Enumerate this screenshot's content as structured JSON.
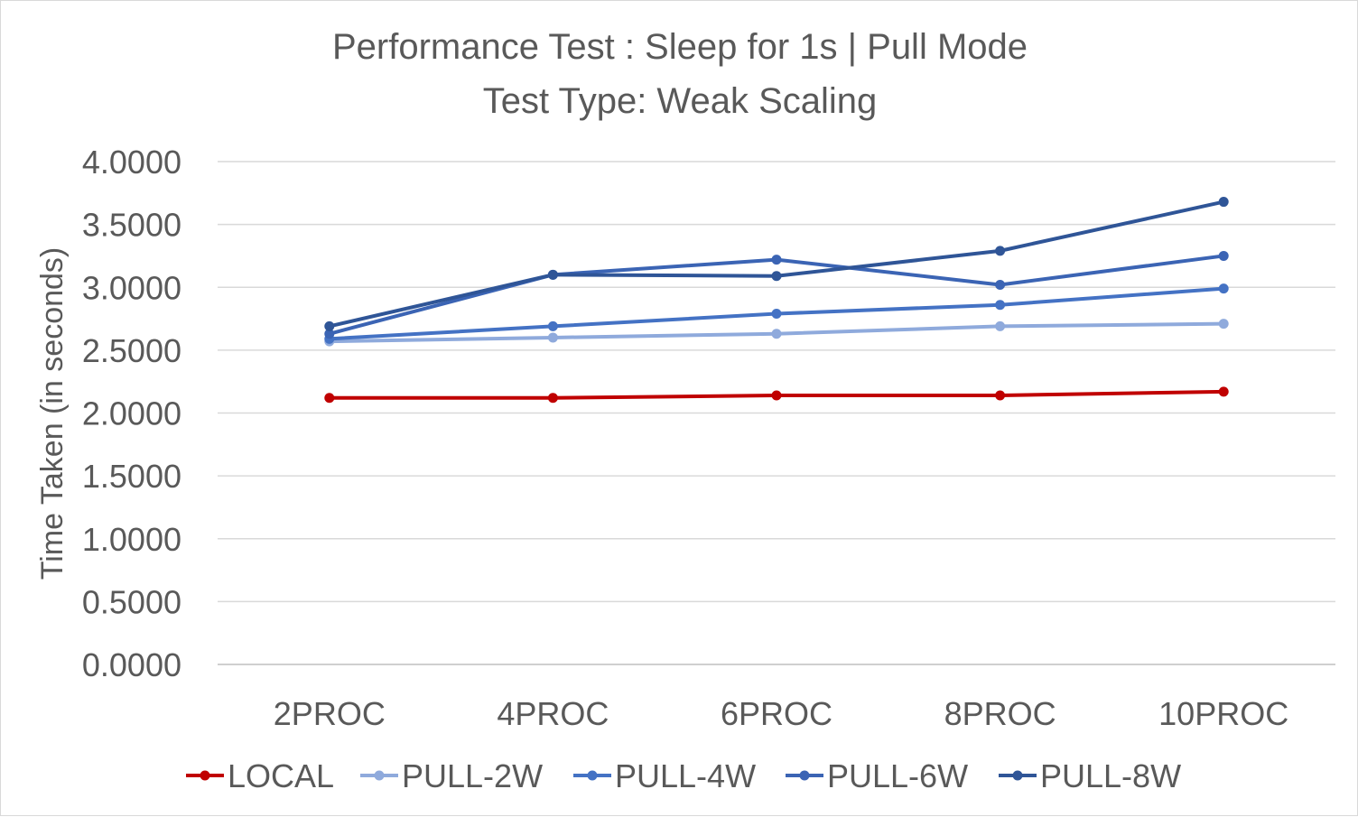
{
  "chart_data": {
    "type": "line",
    "title": "Performance Test : Sleep for 1s | Pull Mode",
    "subtitle": "Test Type: Weak Scaling",
    "xlabel": "",
    "ylabel": "Time Taken (in seconds)",
    "categories": [
      "2PROC",
      "4PROC",
      "6PROC",
      "8PROC",
      "10PROC"
    ],
    "ylim": [
      0,
      4
    ],
    "yticks": [
      "0.0000",
      "0.5000",
      "1.0000",
      "1.5000",
      "2.0000",
      "2.5000",
      "3.0000",
      "3.5000",
      "4.0000"
    ],
    "grid": true,
    "legend_position": "bottom",
    "series": [
      {
        "name": "LOCAL",
        "color": "#c00000",
        "values": [
          2.12,
          2.12,
          2.14,
          2.14,
          2.17
        ]
      },
      {
        "name": "PULL-2W",
        "color": "#8faadc",
        "values": [
          2.57,
          2.6,
          2.63,
          2.69,
          2.71
        ]
      },
      {
        "name": "PULL-4W",
        "color": "#4472c4",
        "values": [
          2.59,
          2.69,
          2.79,
          2.86,
          2.99
        ]
      },
      {
        "name": "PULL-6W",
        "color": "#3b64b4",
        "values": [
          2.63,
          3.1,
          3.22,
          3.02,
          3.25
        ]
      },
      {
        "name": "PULL-8W",
        "color": "#2f5597",
        "values": [
          2.69,
          3.1,
          3.09,
          3.29,
          3.68
        ]
      }
    ]
  }
}
